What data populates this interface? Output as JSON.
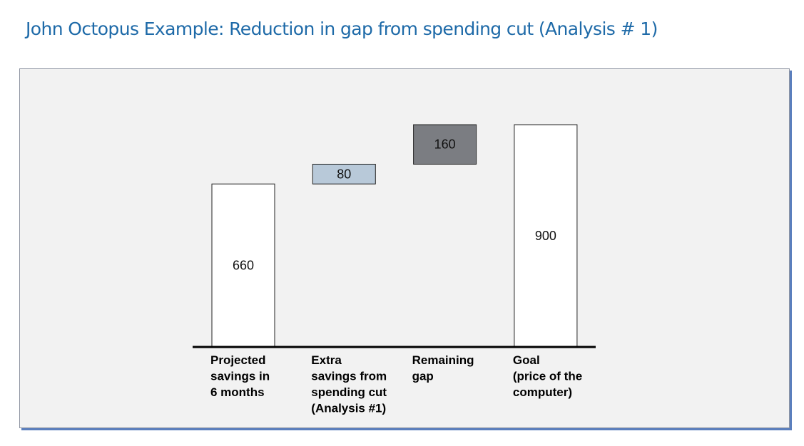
{
  "page": {
    "title": "John Octopus Example: Reduction in gap from spending cut (Analysis # 1)"
  },
  "chart_data": {
    "type": "bar",
    "subtype": "waterfall",
    "categories": [
      [
        "Projected",
        "savings in",
        "6 months"
      ],
      [
        "Extra",
        "savings from",
        "spending cut",
        "(Analysis #1)"
      ],
      [
        "Remaining",
        "gap"
      ],
      [
        "Goal",
        "(price of the",
        "computer)"
      ]
    ],
    "values": [
      660,
      80,
      160,
      900
    ],
    "bases": [
      0,
      660,
      740,
      0
    ],
    "data_labels": [
      "660",
      "80",
      "160",
      "900"
    ],
    "colors": [
      "#ffffff",
      "#b8c9d9",
      "#7b7d82",
      "#ffffff"
    ],
    "ylim": [
      0,
      900
    ],
    "grid": false,
    "legend": "none"
  }
}
